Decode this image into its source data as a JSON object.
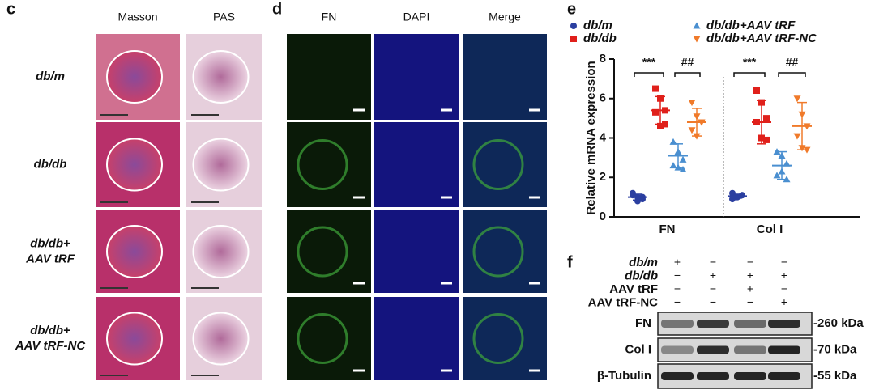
{
  "panel_c": {
    "label": "c",
    "columns": [
      "Masson",
      "PAS"
    ],
    "rows": [
      [
        "db/m"
      ],
      [
        "db/db"
      ],
      [
        "db/db+",
        "AAV tRF"
      ],
      [
        "db/db+",
        "AAV tRF-NC"
      ]
    ]
  },
  "panel_d": {
    "label": "d",
    "columns": [
      "FN",
      "DAPI",
      "Merge"
    ]
  },
  "chart_data": {
    "type": "dotplot",
    "label": "e",
    "y_label": "Relative mRNA expression",
    "categories": [
      "FN",
      "Col I"
    ],
    "ylim": [
      0,
      8
    ],
    "yticks": [
      0,
      2,
      4,
      6,
      8
    ],
    "series": [
      {
        "name": "db/m",
        "color": "#2b3fa0",
        "marker": "circle",
        "values": [
          [
            1.2,
            1.0,
            0.9,
            1.1,
            0.8,
            1.0
          ],
          [
            1.2,
            1.0,
            1.1,
            0.9,
            1.0,
            1.1
          ]
        ],
        "means": [
          1.0,
          1.05
        ],
        "sd": [
          0.15,
          0.1
        ]
      },
      {
        "name": "db/db",
        "color": "#e0201b",
        "marker": "square",
        "values": [
          [
            6.5,
            6.0,
            5.4,
            5.3,
            4.6,
            4.7
          ],
          [
            6.4,
            5.8,
            5.0,
            4.8,
            4.0,
            3.9
          ]
        ],
        "means": [
          5.4,
          4.8
        ],
        "sd": [
          0.7,
          1.1
        ]
      },
      {
        "name": "db/db+AAV tRF",
        "color": "#4a8fd0",
        "marker": "triangle",
        "values": [
          [
            3.8,
            3.3,
            2.9,
            2.6,
            2.5,
            2.4
          ],
          [
            3.3,
            3.1,
            2.7,
            2.1,
            2.3,
            1.9
          ]
        ],
        "means": [
          3.1,
          2.6
        ],
        "sd": [
          0.6,
          0.7
        ]
      },
      {
        "name": "db/db+AAV tRF-NC",
        "color": "#f07a2a",
        "marker": "triangle-down",
        "values": [
          [
            5.8,
            5.1,
            4.8,
            4.4,
            4.1,
            4.8
          ],
          [
            6.0,
            5.2,
            4.6,
            4.1,
            3.5,
            3.4
          ]
        ],
        "means": [
          4.8,
          4.6
        ],
        "sd": [
          0.7,
          1.2
        ]
      }
    ],
    "annotations": [
      "***",
      "##",
      "***",
      "##"
    ]
  },
  "panel_f": {
    "label": "f",
    "conditions": [
      {
        "name": "db/m",
        "signs": [
          "+",
          "−",
          "−",
          "−"
        ]
      },
      {
        "name": "db/db",
        "signs": [
          "−",
          "+",
          "+",
          "+"
        ]
      },
      {
        "name": "AAV tRF",
        "signs": [
          "−",
          "−",
          "+",
          "−"
        ]
      },
      {
        "name": "AAV tRF-NC",
        "signs": [
          "−",
          "−",
          "−",
          "+"
        ]
      }
    ],
    "blots": [
      {
        "name": "FN",
        "size": "-260 kDa"
      },
      {
        "name": "Col I",
        "size": "-70 kDa"
      },
      {
        "name": "β-Tubulin",
        "size": "-55 kDa"
      }
    ]
  }
}
